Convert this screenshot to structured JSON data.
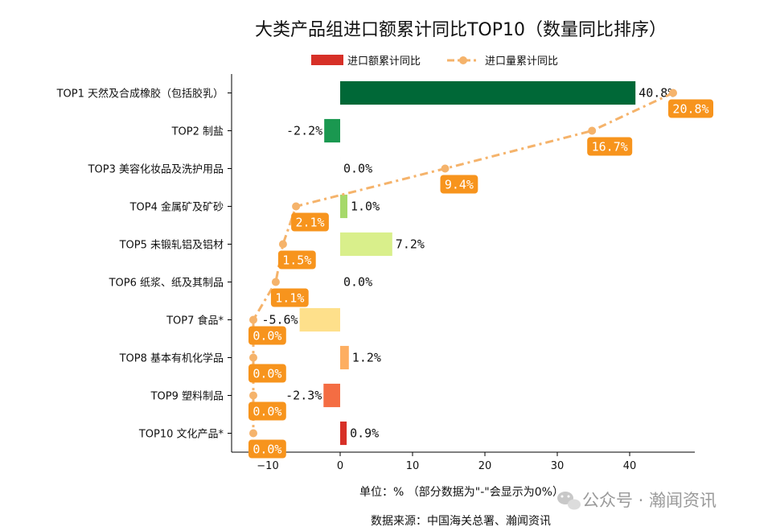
{
  "chart_data": {
    "type": "bar",
    "orientation": "horizontal",
    "title": "大类产品组进口额累计同比TOP10（数量同比排序）",
    "categories": [
      "TOP1 天然及合成橡胶（包括胶乳）",
      "TOP2 制盐",
      "TOP3 美容化妆品及洗护用品",
      "TOP4 金属矿及矿砂",
      "TOP5 未锻轧铝及铝材",
      "TOP6 纸浆、纸及其制品",
      "TOP7 食品*",
      "TOP8 基本有机化学品",
      "TOP9 塑料制品",
      "TOP10 文化产品*"
    ],
    "series": [
      {
        "name": "进口额累计同比",
        "kind": "bar",
        "values": [
          40.8,
          -2.2,
          0.0,
          1.0,
          7.2,
          0.0,
          -5.6,
          1.2,
          -2.3,
          0.9
        ],
        "labels": [
          "40.8%",
          "-2.2%",
          "0.0%",
          "1.0%",
          "7.2%",
          "0.0%",
          "-5.6%",
          "1.2%",
          "-2.3%",
          "0.9%"
        ],
        "colors": [
          "#006837",
          "#1a9850",
          "#66bd63",
          "#a6d96a",
          "#d9ef8b",
          "#ffffbf",
          "#fee08b",
          "#fdae61",
          "#f46d43",
          "#d73027"
        ]
      },
      {
        "name": "进口量累计同比",
        "kind": "line",
        "color": "#f5b36b",
        "label_bg": "#f7941d",
        "x_positions": [
          46.0,
          34.8,
          14.5,
          -6.1,
          -7.9,
          -8.9,
          -12.0,
          -12.0,
          -12.0,
          -12.0
        ],
        "labels": [
          "20.8%",
          "16.7%",
          "9.4%",
          "2.1%",
          "1.5%",
          "1.1%",
          "0.0%",
          "0.0%",
          "0.0%",
          "0.0%"
        ]
      }
    ],
    "xlim": [
      -15,
      49
    ],
    "xticks": [
      -10,
      0,
      10,
      20,
      30,
      40
    ],
    "xtick_labels": [
      "−10",
      "0",
      "10",
      "20",
      "30",
      "40"
    ],
    "legend_position": "top-center",
    "grid": false
  },
  "footer": {
    "unit_note": "单位：%  （部分数据为\"-\"会显示为0%）",
    "source": "数据来源：中国海关总署、瀚闻资讯"
  },
  "watermark": {
    "text": "公众号 · 瀚闻资讯",
    "icon": "wechat-icon"
  }
}
